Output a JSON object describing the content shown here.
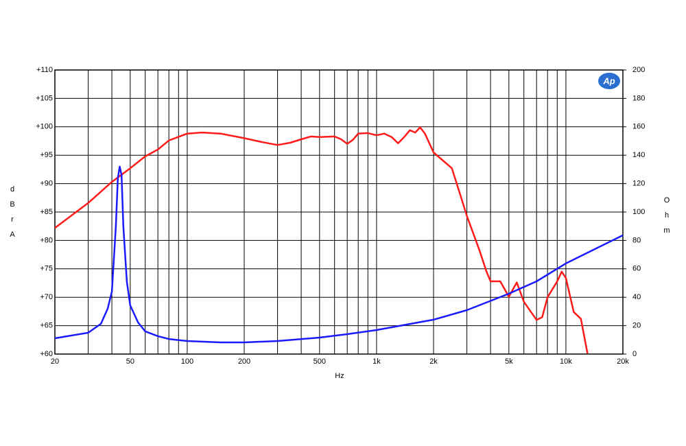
{
  "chart_data": {
    "type": "line",
    "xscale": "log",
    "grid": true,
    "logo": "Ap",
    "xlabel": "Hz",
    "ylabel": "dBrA",
    "y2label": "Ohm",
    "xlim": [
      20,
      20000
    ],
    "xticks": [
      20,
      50,
      100,
      200,
      500,
      {
        "value": 1000,
        "label": "1k"
      },
      {
        "value": 2000,
        "label": "2k"
      },
      {
        "value": 5000,
        "label": "5k"
      },
      {
        "value": 10000,
        "label": "10k"
      },
      {
        "value": 20000,
        "label": "20k"
      }
    ],
    "xgrid": [
      30,
      40,
      60,
      70,
      80,
      90,
      300,
      400,
      600,
      700,
      800,
      900,
      3000,
      4000,
      6000,
      7000,
      8000,
      9000
    ],
    "ylim": [
      60,
      110
    ],
    "yticks": [
      {
        "value": 60,
        "label": "+60"
      },
      {
        "value": 65,
        "label": "+65"
      },
      {
        "value": 70,
        "label": "+70"
      },
      {
        "value": 75,
        "label": "+75"
      },
      {
        "value": 80,
        "label": "+80"
      },
      {
        "value": 85,
        "label": "+85"
      },
      {
        "value": 90,
        "label": "+90"
      },
      {
        "value": 95,
        "label": "+95"
      },
      {
        "value": 100,
        "label": "+100"
      },
      {
        "value": 105,
        "label": "+105"
      },
      {
        "value": 110,
        "label": "+110"
      }
    ],
    "y2lim": [
      0,
      200
    ],
    "y2ticks": [
      0,
      20,
      40,
      60,
      80,
      100,
      120,
      140,
      160,
      180,
      200
    ],
    "series": [
      {
        "name": "dBrA",
        "color": "#ff1a1a",
        "x": [
          20,
          30,
          40,
          50,
          60,
          70,
          80,
          100,
          120,
          150,
          200,
          250,
          300,
          350,
          400,
          450,
          500,
          600,
          650,
          700,
          750,
          800,
          900,
          1000,
          1100,
          1200,
          1300,
          1400,
          1500,
          1600,
          1700,
          1800,
          2000,
          2200,
          2500,
          2800,
          3000,
          3500,
          3800,
          4000,
          4500,
          5000,
          5500,
          6000,
          7000,
          7500,
          8000,
          9000,
          9500,
          10000,
          11000,
          12000,
          13000
        ],
        "values": [
          82.2,
          86.6,
          90.3,
          92.7,
          94.8,
          96,
          97.6,
          98.8,
          99,
          98.8,
          98,
          97.3,
          96.8,
          97.2,
          97.8,
          98.3,
          98.2,
          98.3,
          97.8,
          97,
          97.7,
          98.8,
          98.9,
          98.5,
          98.8,
          98.2,
          97.1,
          98.2,
          99.4,
          99,
          99.9,
          98.8,
          95.5,
          94.3,
          92.7,
          87.5,
          84.3,
          78.2,
          74.6,
          72.8,
          72.8,
          70.1,
          72.6,
          69.2,
          66,
          66.5,
          70,
          72.8,
          74.5,
          73.4,
          67.4,
          66.2,
          60.1
        ]
      },
      {
        "name": "Ohm",
        "color": "#1a1aff",
        "axis": "y2",
        "x": [
          20,
          30,
          35,
          38,
          40,
          42,
          43,
          44,
          45,
          46,
          48,
          50,
          55,
          60,
          70,
          80,
          100,
          150,
          200,
          300,
          500,
          700,
          1000,
          2000,
          3000,
          5000,
          7000,
          10000,
          15000,
          20000
        ],
        "values": [
          11.1,
          15,
          21.3,
          31.9,
          44,
          90,
          124,
          132,
          126,
          90,
          51,
          34.3,
          22.2,
          16,
          12.6,
          10.6,
          9.2,
          8.2,
          8.2,
          9.2,
          11.6,
          14,
          16.9,
          24.2,
          30.9,
          42.5,
          51.2,
          63.8,
          75.4,
          83.6
        ]
      }
    ]
  }
}
